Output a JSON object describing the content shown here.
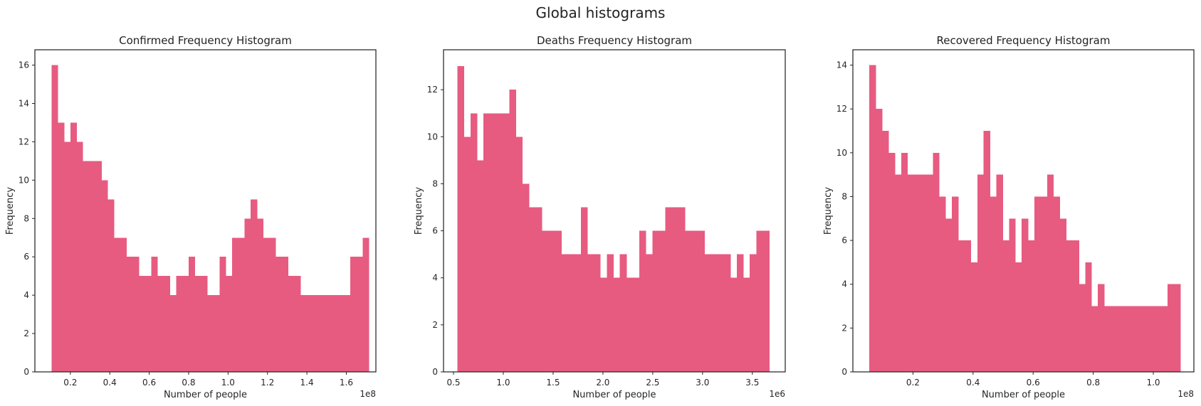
{
  "figure": {
    "title": "Global histograms"
  },
  "colors": {
    "bar": "#e75b80",
    "frame": "#262626",
    "background": "#ffffff"
  },
  "chart_data": [
    {
      "type": "bar",
      "title": "Confirmed Frequency Histogram",
      "xlabel": "Number of people",
      "ylabel": "Frequency",
      "offset_text": "1e8",
      "xlim": [
        0.02,
        1.75
      ],
      "ylim": [
        0,
        16.8
      ],
      "xticks": [
        0.2,
        0.4,
        0.6,
        0.8,
        1.0,
        1.2,
        1.4,
        1.6
      ],
      "xtick_labels": [
        "0.2",
        "0.4",
        "0.6",
        "0.8",
        "1.0",
        "1.2",
        "1.4",
        "1.6"
      ],
      "yticks": [
        0,
        2,
        4,
        6,
        8,
        10,
        12,
        14,
        16
      ],
      "ytick_labels": [
        "0",
        "2",
        "4",
        "6",
        "8",
        "10",
        "12",
        "14",
        "16"
      ],
      "grid": false,
      "bin_range": [
        0.105,
        1.715
      ],
      "values": [
        16,
        13,
        12,
        13,
        12,
        11,
        11,
        11,
        10,
        9,
        7,
        7,
        6,
        6,
        5,
        5,
        6,
        5,
        5,
        4,
        5,
        5,
        6,
        5,
        5,
        4,
        4,
        6,
        5,
        7,
        7,
        8,
        9,
        8,
        7,
        7,
        6,
        6,
        5,
        5,
        4,
        4,
        4,
        4,
        4,
        4,
        4,
        4,
        6,
        6,
        7
      ]
    },
    {
      "type": "bar",
      "title": "Deaths Frequency Histogram",
      "xlabel": "Number of people",
      "ylabel": "Frequency",
      "offset_text": "1e6",
      "xlim": [
        0.4,
        3.83
      ],
      "ylim": [
        0,
        13.7
      ],
      "xticks": [
        0.5,
        1.0,
        1.5,
        2.0,
        2.5,
        3.0,
        3.5
      ],
      "xtick_labels": [
        "0.5",
        "1.0",
        "1.5",
        "2.0",
        "2.5",
        "3.0",
        "3.5"
      ],
      "yticks": [
        0,
        2,
        4,
        6,
        8,
        10,
        12
      ],
      "ytick_labels": [
        "0",
        "2",
        "4",
        "6",
        "8",
        "10",
        "12"
      ],
      "grid": false,
      "bin_range": [
        0.54,
        3.67
      ],
      "values": [
        13,
        10,
        11,
        9,
        11,
        11,
        11,
        11,
        12,
        10,
        8,
        7,
        7,
        6,
        6,
        6,
        5,
        5,
        5,
        7,
        5,
        5,
        4,
        5,
        4,
        5,
        4,
        4,
        6,
        5,
        6,
        6,
        7,
        7,
        7,
        6,
        6,
        6,
        5,
        5,
        5,
        5,
        4,
        5,
        4,
        5,
        6,
        6
      ]
    },
    {
      "type": "bar",
      "title": "Recovered Frequency Histogram",
      "xlabel": "Number of people",
      "ylabel": "Frequency",
      "offset_text": "1e8",
      "xlim": [
        0.0,
        1.135
      ],
      "ylim": [
        0,
        14.7
      ],
      "xticks": [
        0.2,
        0.4,
        0.6,
        0.8,
        1.0
      ],
      "xtick_labels": [
        "0.2",
        "0.4",
        "0.6",
        "0.8",
        "1.0"
      ],
      "yticks": [
        0,
        2,
        4,
        6,
        8,
        10,
        12,
        14
      ],
      "ytick_labels": [
        "0",
        "2",
        "4",
        "6",
        "8",
        "10",
        "12",
        "14"
      ],
      "grid": false,
      "bin_range": [
        0.055,
        1.09
      ],
      "values": [
        14,
        12,
        11,
        10,
        9,
        10,
        9,
        9,
        9,
        9,
        10,
        8,
        7,
        8,
        6,
        6,
        5,
        9,
        11,
        8,
        9,
        6,
        7,
        5,
        7,
        6,
        8,
        8,
        9,
        8,
        7,
        6,
        6,
        4,
        5,
        3,
        4,
        3,
        3,
        3,
        3,
        3,
        3,
        3,
        3,
        3,
        3,
        4,
        4
      ]
    }
  ]
}
